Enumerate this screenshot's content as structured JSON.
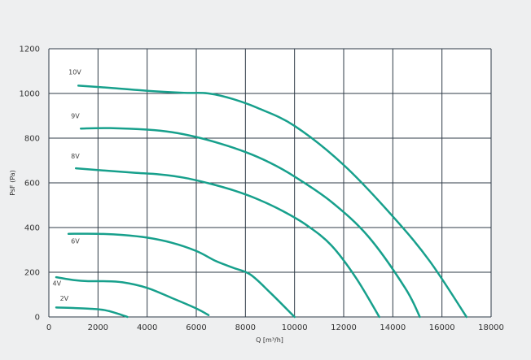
{
  "chart_data": {
    "type": "line",
    "xlabel": "Q [m³/h]",
    "ylabel": "PsF (Pa)",
    "xlim": [
      0,
      18000
    ],
    "ylim": [
      0,
      1200
    ],
    "x_ticks": [
      0,
      2000,
      4000,
      6000,
      8000,
      10000,
      12000,
      14000,
      16000,
      18000
    ],
    "y_ticks": [
      0,
      200,
      400,
      600,
      800,
      1000,
      1200
    ],
    "grid": true,
    "line_color": "#17a08c",
    "grid_color": "#2f3b47",
    "background": "#ffffff",
    "series": [
      {
        "name": "10V",
        "x": [
          1200,
          2500,
          4000,
          5500,
          6500,
          7500,
          8500,
          10000,
          12000,
          14000,
          15500,
          17000
        ],
        "y": [
          1035,
          1025,
          1012,
          1003,
          1000,
          975,
          935,
          855,
          680,
          450,
          250,
          0
        ]
      },
      {
        "name": "9V",
        "x": [
          1300,
          2500,
          4000,
          5000,
          6000,
          7000,
          8000,
          9000,
          10000,
          11500,
          13000,
          14500,
          15100
        ],
        "y": [
          843,
          845,
          838,
          827,
          805,
          775,
          738,
          690,
          628,
          515,
          360,
          130,
          0
        ]
      },
      {
        "name": "8V",
        "x": [
          1100,
          2500,
          3500,
          4500,
          5500,
          6500,
          7500,
          8500,
          9500,
          10500,
          11500,
          12500,
          13450
        ],
        "y": [
          665,
          653,
          645,
          638,
          623,
          598,
          567,
          527,
          475,
          410,
          320,
          175,
          0
        ]
      },
      {
        "name": "6V",
        "x": [
          800,
          2000,
          3000,
          4000,
          5000,
          6000,
          6800,
          7500,
          8200,
          9000,
          10000
        ],
        "y": [
          372,
          372,
          367,
          355,
          332,
          295,
          250,
          220,
          190,
          110,
          0
        ]
      },
      {
        "name": "4V",
        "x": [
          300,
          1000,
          1600,
          2200,
          3000,
          4000,
          5000,
          6000,
          6500
        ],
        "y": [
          178,
          165,
          160,
          160,
          155,
          130,
          85,
          38,
          8
        ]
      },
      {
        "name": "2V",
        "x": [
          300,
          1000,
          1800,
          2300,
          2800,
          3200
        ],
        "y": [
          42,
          40,
          36,
          30,
          15,
          0
        ]
      }
    ],
    "curve_labels": [
      {
        "text": "10V",
        "x": 800,
        "y": 1085
      },
      {
        "text": "9V",
        "x": 900,
        "y": 890
      },
      {
        "text": "8V",
        "x": 900,
        "y": 710
      },
      {
        "text": "6V",
        "x": 900,
        "y": 330
      },
      {
        "text": "4V",
        "x": 150,
        "y": 140
      },
      {
        "text": "2V",
        "x": 450,
        "y": 72
      }
    ]
  }
}
